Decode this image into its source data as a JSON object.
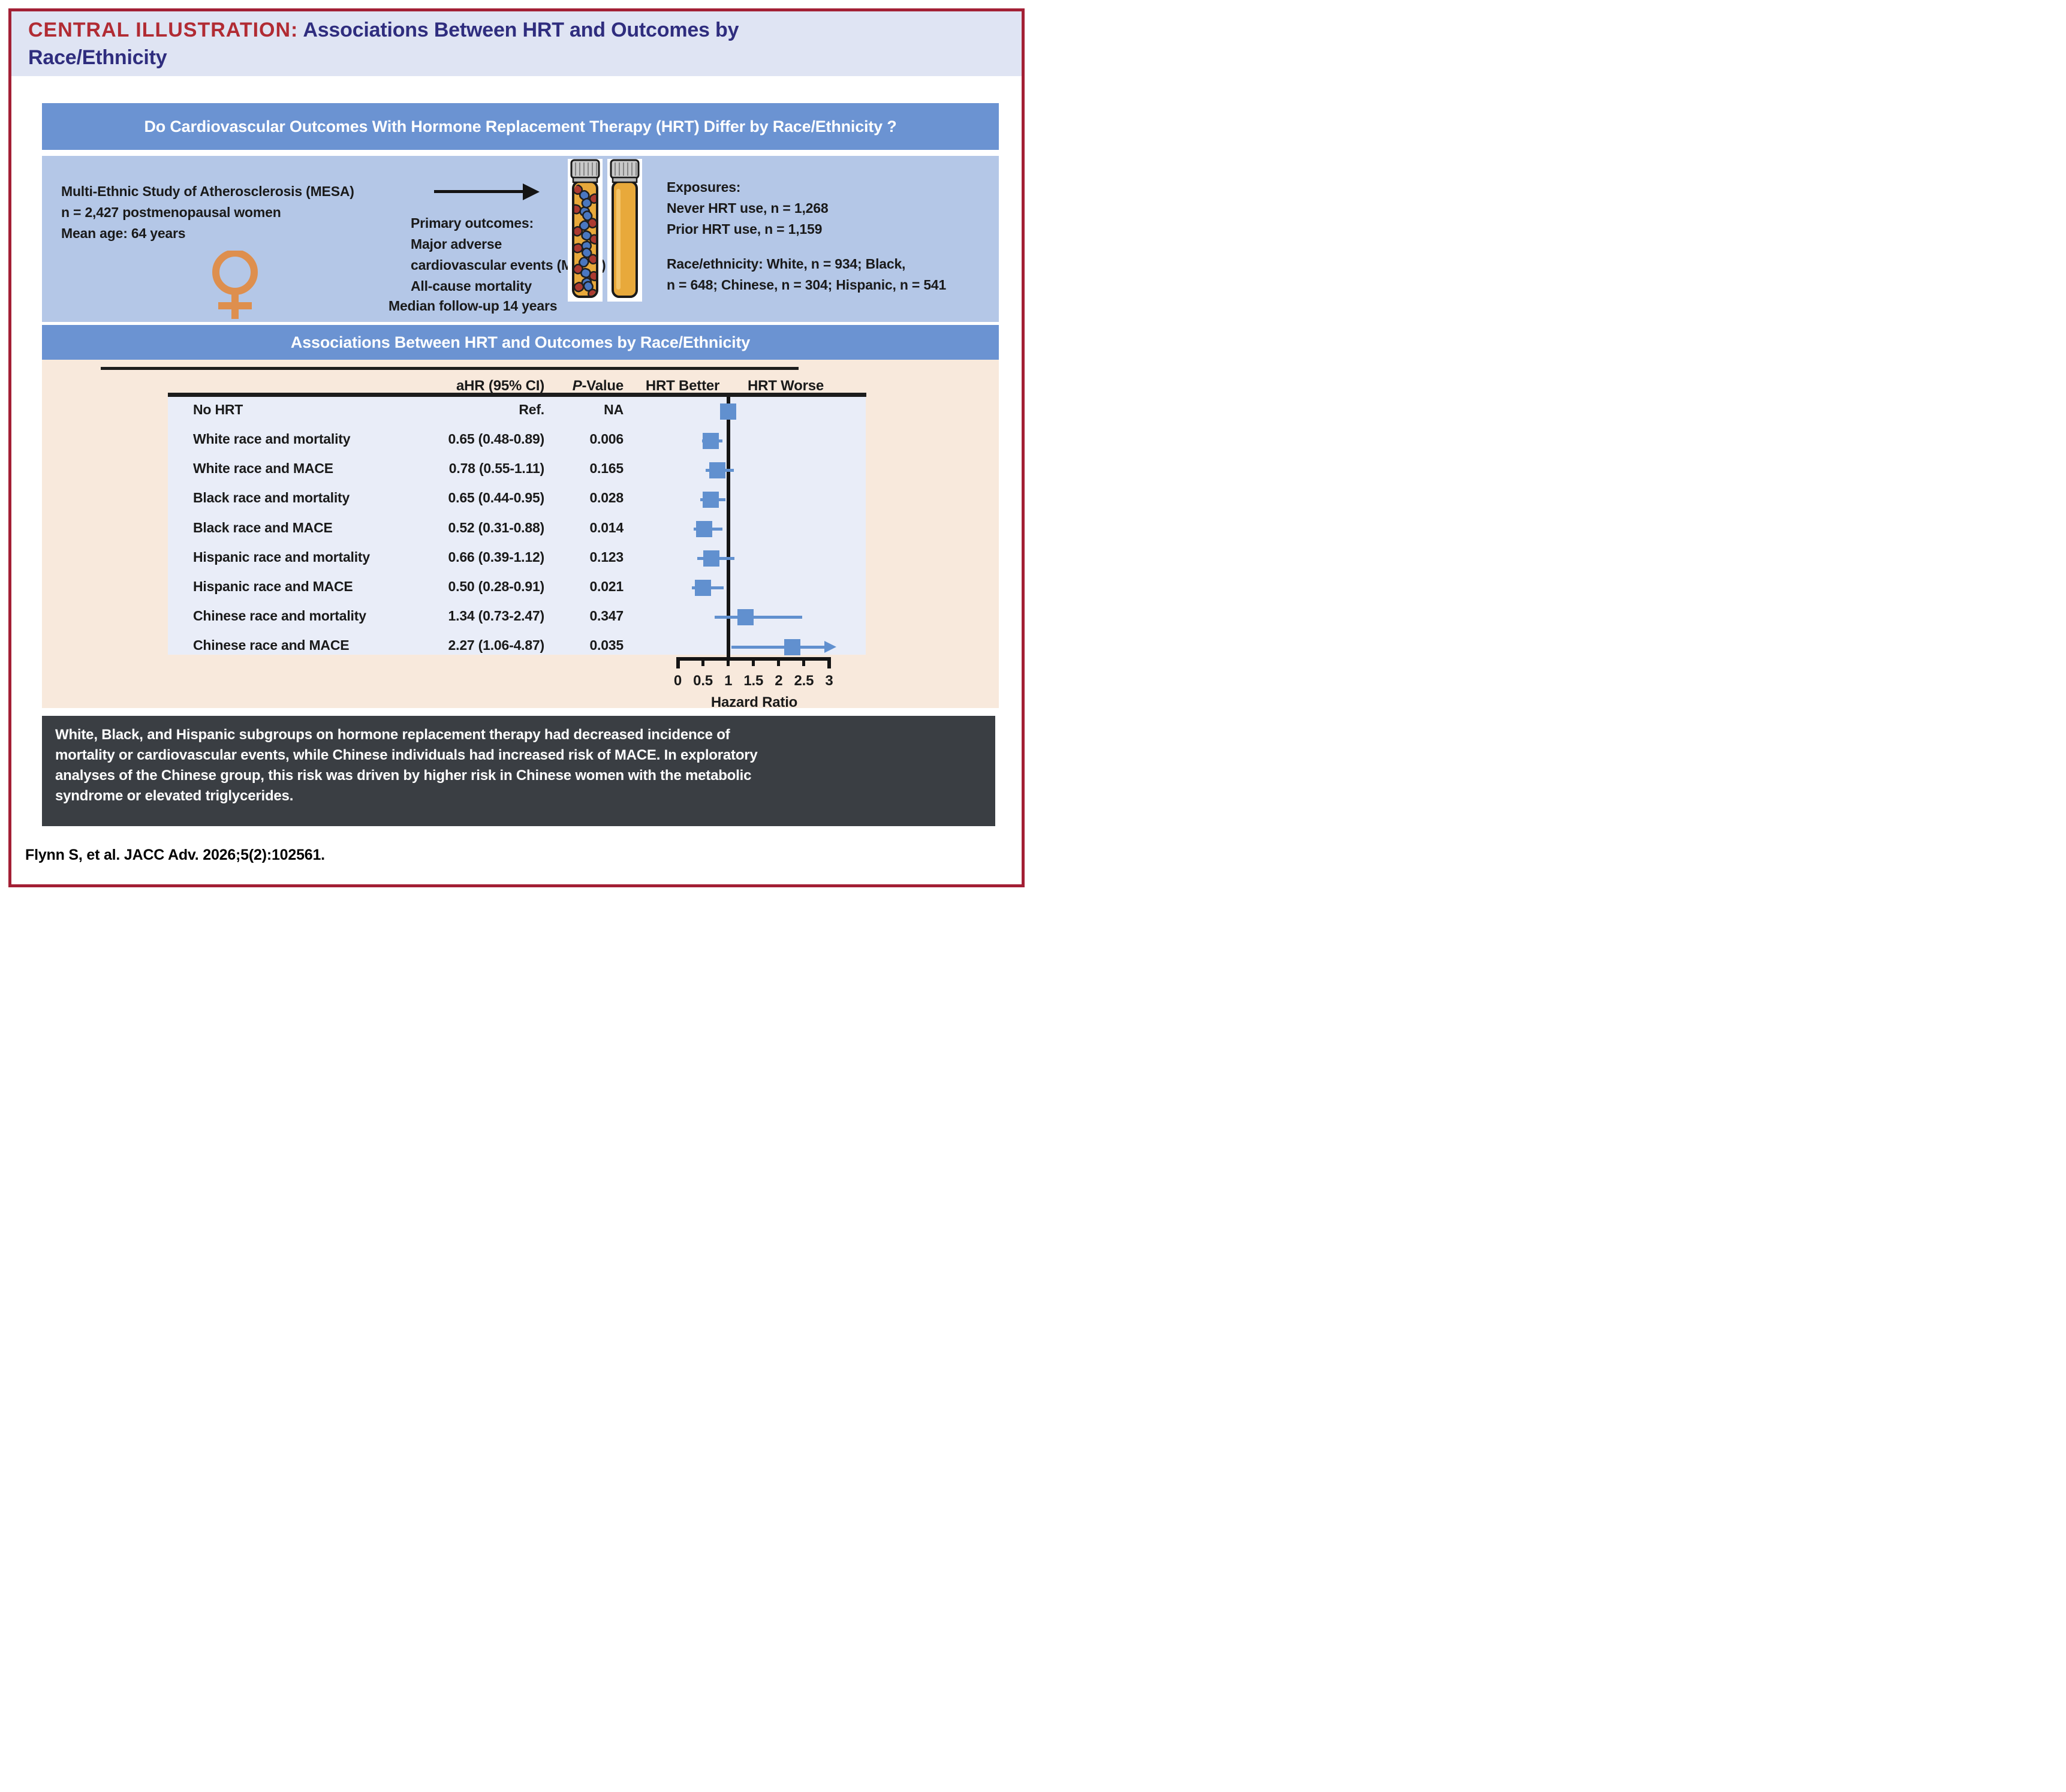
{
  "title": {
    "prefix": "CENTRAL ILLUSTRATION:",
    "line1_rest": " Associations Between HRT and Outcomes by",
    "line2": "Race/Ethnicity"
  },
  "question_banner": "Do Cardiovascular Outcomes With Hormone Replacement Therapy (HRT) Differ by Race/Ethnicity ?",
  "study": {
    "line1": "Multi-Ethnic Study of Atherosclerosis (MESA)",
    "line2": "n = 2,427 postmenopausal women",
    "line3": "Mean age: 64 years"
  },
  "outcomes": {
    "heading": "Primary outcomes:",
    "lines": [
      "Major adverse",
      "cardiovascular events (MACE)",
      "All-cause mortality"
    ],
    "followup": "Median follow-up 14 years"
  },
  "exposures": {
    "heading": "Exposures:",
    "lines": [
      "Never HRT use, n = 1,268",
      "Prior HRT use, n = 1,159"
    ]
  },
  "race": {
    "heading": "Race/ethnicity:",
    "line1_rest": " White, n = 934; Black,",
    "line2": "n = 648; Chinese, n = 304; Hispanic, n = 541"
  },
  "forest_banner": "Associations Between HRT and Outcomes by Race/Ethnicity",
  "chart_data": {
    "type": "forest",
    "title": "Associations Between HRT and Outcomes by Race/Ethnicity",
    "columns": {
      "effect": "aHR (95% CI)",
      "p_italic": "P",
      "p_rest": "-Value",
      "better": "HRT Better",
      "worse": "HRT Worse"
    },
    "axis": {
      "label": "Hazard Ratio",
      "ticks": [
        0,
        0.5,
        1,
        1.5,
        2,
        2.5,
        3
      ],
      "range": [
        0,
        3
      ],
      "ref_line": 1
    },
    "rows": [
      {
        "label": "No HRT",
        "ci_text": "Ref.",
        "p_text": "NA",
        "hr": 1.0,
        "lo": null,
        "hi": null
      },
      {
        "label": "White race and mortality",
        "ci_text": "0.65 (0.48-0.89)",
        "p_text": "0.006",
        "hr": 0.65,
        "lo": 0.48,
        "hi": 0.89
      },
      {
        "label": "White race and MACE",
        "ci_text": "0.78 (0.55-1.11)",
        "p_text": "0.165",
        "hr": 0.78,
        "lo": 0.55,
        "hi": 1.11
      },
      {
        "label": "Black race and mortality",
        "ci_text": "0.65 (0.44-0.95)",
        "p_text": "0.028",
        "hr": 0.65,
        "lo": 0.44,
        "hi": 0.95
      },
      {
        "label": "Black race and MACE",
        "ci_text": "0.52 (0.31-0.88)",
        "p_text": "0.014",
        "hr": 0.52,
        "lo": 0.31,
        "hi": 0.88
      },
      {
        "label": "Hispanic race and mortality",
        "ci_text": "0.66 (0.39-1.12)",
        "p_text": "0.123",
        "hr": 0.66,
        "lo": 0.39,
        "hi": 1.12
      },
      {
        "label": "Hispanic race and MACE",
        "ci_text": "0.50 (0.28-0.91)",
        "p_text": "0.021",
        "hr": 0.5,
        "lo": 0.28,
        "hi": 0.91
      },
      {
        "label": "Chinese race and mortality",
        "ci_text": "1.34 (0.73-2.47)",
        "p_text": "0.347",
        "hr": 1.34,
        "lo": 0.73,
        "hi": 2.47
      },
      {
        "label": "Chinese race and MACE",
        "ci_text": "2.27 (1.06-4.87)",
        "p_text": "0.035",
        "hr": 2.27,
        "lo": 1.06,
        "hi": 4.87,
        "arrow": true
      }
    ]
  },
  "summary_lines": [
    "White, Black, and Hispanic subgroups on hormone replacement therapy had decreased incidence of",
    "mortality or cardiovascular events, while Chinese individuals had increased risk of MACE. In exploratory",
    "analyses of the Chinese group, this risk was driven by higher risk in Chinese women with the metabolic",
    "syndrome or elevated triglycerides."
  ],
  "citation": "Flynn S, et al. JACC Adv. 2026;5(2):102561.",
  "icons": {
    "female_symbol": "♀",
    "arrow_right": "→",
    "pill_bottles": "pill-bottles"
  },
  "colors": {
    "border_red": "#A32035",
    "title_band": "#DFE4F3",
    "title_red": "#B12B33",
    "title_navy": "#2F2D7E",
    "banner_blue": "#6B93D2",
    "panel_blue": "#B4C7E7",
    "peach": "#F8E9DC",
    "plot_bg": "#E9EDF8",
    "marker_blue": "#6190CF",
    "summary_bg": "#3A3E43",
    "orange": "#DE8F4E",
    "bottle_amber": "#E8A93B",
    "pill_red": "#AC3A31",
    "pill_blue": "#4A77C0",
    "cap_gray": "#C9C9C9",
    "text_dark": "#1A1A1A"
  }
}
